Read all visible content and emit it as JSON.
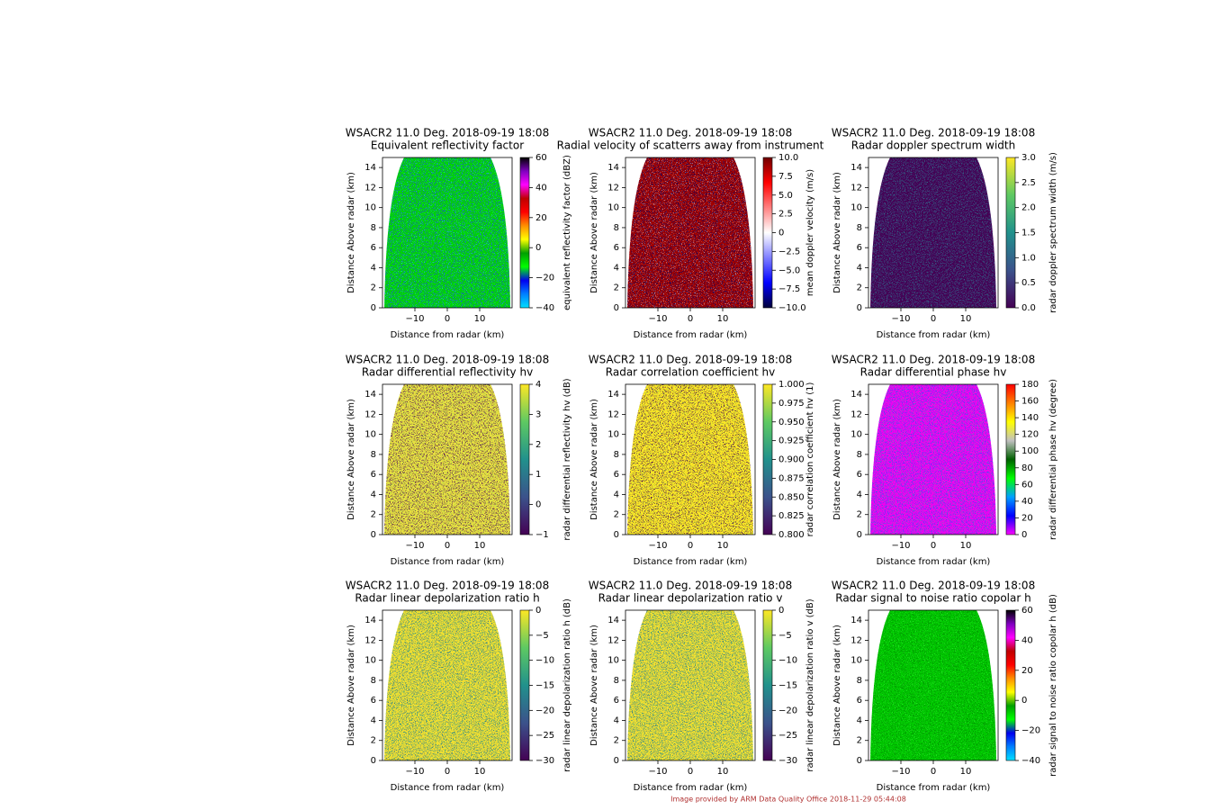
{
  "footer": "Image provided by ARM Data Quality Office 2018-11-29 05:44:08",
  "chart_data": [
    {
      "type": "image",
      "title": "WSACR2 11.0 Deg. 2018-09-19 18:08",
      "subtitle": "Equivalent reflectivity factor",
      "xlabel": "Distance from radar (km)",
      "ylabel": "Distance Above radar (km)",
      "xlim": [
        -20,
        20
      ],
      "xticks": [
        {
          "value": -10,
          "label": "−10"
        },
        0,
        10
      ],
      "ylim": [
        0,
        15
      ],
      "yticks": [
        0,
        2,
        4,
        6,
        8,
        10,
        12,
        14
      ],
      "colorbar": {
        "label": "equivalent reflectivity factor (dBZ)",
        "lim": [
          -40,
          60
        ],
        "ticks": [
          {
            "value": -40,
            "label": "−40"
          },
          {
            "value": -20,
            "label": "−20"
          },
          0,
          20,
          40,
          60
        ],
        "cmap": [
          "#00e0ff",
          "#0080ff",
          "#0000f0",
          "#00ff00",
          "#00a000",
          "#ffff00",
          "#ff9000",
          "#ff0000",
          "#c00000",
          "#ff00ff",
          "#8000c0",
          "#000000"
        ]
      },
      "field_colors": [
        "#00d400",
        "#1a4fe0",
        "#20e0f0"
      ]
    },
    {
      "type": "image",
      "title": "WSACR2 11.0 Deg. 2018-09-19 18:08",
      "subtitle": "Radial velocity of scatterrs away from instrument",
      "xlabel": "Distance from radar (km)",
      "ylabel": "Distance Above radar (km)",
      "xlim": [
        -20,
        20
      ],
      "xticks": [
        {
          "value": -10,
          "label": "−10"
        },
        0,
        10
      ],
      "ylim": [
        0,
        15
      ],
      "yticks": [
        0,
        2,
        4,
        6,
        8,
        10,
        12,
        14
      ],
      "colorbar": {
        "label": "mean doppler velocity (m/s)",
        "lim": [
          -10,
          10
        ],
        "ticks": [
          {
            "value": -10,
            "label": "−10.0"
          },
          {
            "value": -7.5,
            "label": "−7.5"
          },
          {
            "value": -5,
            "label": "−5.0"
          },
          {
            "value": -2.5,
            "label": "−2.5"
          },
          0,
          2.5,
          {
            "value": 5,
            "label": "5.0"
          },
          7.5,
          {
            "value": 10,
            "label": "10.0"
          }
        ],
        "cmap": [
          "#00003a",
          "#0000ff",
          "#8080ff",
          "#ffffff",
          "#ff8080",
          "#ff0000",
          "#700000"
        ]
      },
      "field_colors": [
        "#a00000",
        "#00006a",
        "#f0f0ff"
      ]
    },
    {
      "type": "image",
      "title": "WSACR2 11.0 Deg. 2018-09-19 18:08",
      "subtitle": "Radar doppler spectrum width",
      "xlabel": "Distance from radar (km)",
      "ylabel": "Distance Above radar (km)",
      "xlim": [
        -20,
        20
      ],
      "xticks": [
        {
          "value": -10,
          "label": "−10"
        },
        0,
        10
      ],
      "ylim": [
        0,
        15
      ],
      "yticks": [
        0,
        2,
        4,
        6,
        8,
        10,
        12,
        14
      ],
      "colorbar": {
        "label": "radar doppler spectrum width (m/s)",
        "lim": [
          0,
          3
        ],
        "ticks": [
          {
            "value": 0,
            "label": "0.0"
          },
          0.5,
          {
            "value": 1,
            "label": "1.0"
          },
          1.5,
          {
            "value": 2,
            "label": "2.0"
          },
          2.5,
          {
            "value": 3,
            "label": "3.0"
          }
        ],
        "cmap": [
          "#440154",
          "#3b528b",
          "#21918c",
          "#5ec962",
          "#fde725"
        ]
      },
      "field_colors": [
        "#440154",
        "#3b528b",
        "#21918c"
      ]
    },
    {
      "type": "image",
      "title": "WSACR2 11.0 Deg. 2018-09-19 18:08",
      "subtitle": "Radar differential reflectivity hv",
      "xlabel": "Distance from radar (km)",
      "ylabel": "Distance Above radar (km)",
      "xlim": [
        -20,
        20
      ],
      "xticks": [
        {
          "value": -10,
          "label": "−10"
        },
        0,
        10
      ],
      "ylim": [
        0,
        15
      ],
      "yticks": [
        0,
        2,
        4,
        6,
        8,
        10,
        12,
        14
      ],
      "colorbar": {
        "label": "radar differential reflectivity hv (dB)",
        "lim": [
          -1,
          4
        ],
        "ticks": [
          {
            "value": -1,
            "label": "−1"
          },
          0,
          1,
          2,
          3,
          4
        ],
        "cmap": [
          "#440154",
          "#3b528b",
          "#21918c",
          "#5ec962",
          "#fde725"
        ]
      },
      "field_colors": [
        "#e8e040",
        "#440154",
        "#7ad151"
      ]
    },
    {
      "type": "image",
      "title": "WSACR2 11.0 Deg. 2018-09-19 18:08",
      "subtitle": "Radar correlation coefficient hv",
      "xlabel": "Distance from radar (km)",
      "ylabel": "Distance Above radar (km)",
      "xlim": [
        -20,
        20
      ],
      "xticks": [
        {
          "value": -10,
          "label": "−10"
        },
        0,
        10
      ],
      "ylim": [
        0,
        15
      ],
      "yticks": [
        0,
        2,
        4,
        6,
        8,
        10,
        12,
        14
      ],
      "colorbar": {
        "label": "radar correlation coefficient hv (1)",
        "lim": [
          0.8,
          1
        ],
        "ticks": [
          {
            "value": 0.8,
            "label": "0.800"
          },
          0.825,
          {
            "value": 0.85,
            "label": "0.850"
          },
          0.875,
          {
            "value": 0.9,
            "label": "0.900"
          },
          0.925,
          {
            "value": 0.95,
            "label": "0.950"
          },
          0.975,
          {
            "value": 1,
            "label": "1.000"
          }
        ],
        "cmap": [
          "#440154",
          "#3b528b",
          "#21918c",
          "#5ec962",
          "#fde725"
        ]
      },
      "field_colors": [
        "#fde725",
        "#3b0050",
        "#7ad151"
      ]
    },
    {
      "type": "image",
      "title": "WSACR2 11.0 Deg. 2018-09-19 18:08",
      "subtitle": "Radar differential phase hv",
      "xlabel": "Distance from radar (km)",
      "ylabel": "Distance Above radar (km)",
      "xlim": [
        -20,
        20
      ],
      "xticks": [
        {
          "value": -10,
          "label": "−10"
        },
        0,
        10
      ],
      "ylim": [
        0,
        15
      ],
      "yticks": [
        0,
        2,
        4,
        6,
        8,
        10,
        12,
        14
      ],
      "colorbar": {
        "label": "radar differential phase hv (degree)",
        "lim": [
          0,
          180
        ],
        "ticks": [
          0,
          20,
          40,
          60,
          80,
          100,
          120,
          140,
          160,
          180
        ],
        "cmap": [
          "#ff00ff",
          "#0000ff",
          "#00a0ff",
          "#00ff00",
          "#006000",
          "#c0c0c0",
          "#ffff00",
          "#ff8000",
          "#ff0000"
        ]
      },
      "field_colors": [
        "#f000f0",
        "#4040ff",
        "#20c0a0"
      ]
    },
    {
      "type": "image",
      "title": "WSACR2 11.0 Deg. 2018-09-19 18:08",
      "subtitle": "Radar linear depolarization ratio h",
      "xlabel": "Distance from radar (km)",
      "ylabel": "Distance Above radar (km)",
      "xlim": [
        -20,
        20
      ],
      "xticks": [
        {
          "value": -10,
          "label": "−10"
        },
        0,
        10
      ],
      "ylim": [
        0,
        15
      ],
      "yticks": [
        0,
        2,
        4,
        6,
        8,
        10,
        12,
        14
      ],
      "colorbar": {
        "label": "radar linear depolarization ratio h (dB)",
        "lim": [
          -30,
          0
        ],
        "ticks": [
          {
            "value": -30,
            "label": "−30"
          },
          {
            "value": -25,
            "label": "−25"
          },
          {
            "value": -20,
            "label": "−20"
          },
          {
            "value": -15,
            "label": "−15"
          },
          {
            "value": -10,
            "label": "−10"
          },
          {
            "value": -5,
            "label": "−5"
          },
          0
        ],
        "cmap": [
          "#440154",
          "#3b528b",
          "#21918c",
          "#5ec962",
          "#fde725"
        ]
      },
      "field_colors": [
        "#f0e030",
        "#21918c",
        "#3b528b"
      ]
    },
    {
      "type": "image",
      "title": "WSACR2 11.0 Deg. 2018-09-19 18:08",
      "subtitle": "Radar linear depolarization ratio v",
      "xlabel": "Distance from radar (km)",
      "ylabel": "Distance Above radar (km)",
      "xlim": [
        -20,
        20
      ],
      "xticks": [
        {
          "value": -10,
          "label": "−10"
        },
        0,
        10
      ],
      "ylim": [
        0,
        15
      ],
      "yticks": [
        0,
        2,
        4,
        6,
        8,
        10,
        12,
        14
      ],
      "colorbar": {
        "label": "radar linear depolarization ratio v (dB)",
        "lim": [
          -30,
          0
        ],
        "ticks": [
          {
            "value": -30,
            "label": "−30"
          },
          {
            "value": -25,
            "label": "−25"
          },
          {
            "value": -20,
            "label": "−20"
          },
          {
            "value": -15,
            "label": "−15"
          },
          {
            "value": -10,
            "label": "−10"
          },
          {
            "value": -5,
            "label": "−5"
          },
          0
        ],
        "cmap": [
          "#440154",
          "#3b528b",
          "#21918c",
          "#5ec962",
          "#fde725"
        ]
      },
      "field_colors": [
        "#f0e030",
        "#21918c",
        "#3b528b"
      ]
    },
    {
      "type": "image",
      "title": "WSACR2 11.0 Deg. 2018-09-19 18:08",
      "subtitle": "Radar signal to noise ratio copolar h",
      "xlabel": "Distance from radar (km)",
      "ylabel": "Distance Above radar (km)",
      "xlim": [
        -20,
        20
      ],
      "xticks": [
        {
          "value": -10,
          "label": "−10"
        },
        0,
        10
      ],
      "ylim": [
        0,
        15
      ],
      "yticks": [
        0,
        2,
        4,
        6,
        8,
        10,
        12,
        14
      ],
      "colorbar": {
        "label": "radar signal to noise ratio copolar h (dB)",
        "lim": [
          -40,
          60
        ],
        "ticks": [
          {
            "value": -40,
            "label": "−40"
          },
          {
            "value": -20,
            "label": "−20"
          },
          0,
          20,
          40,
          60
        ],
        "cmap": [
          "#00e0ff",
          "#0080ff",
          "#0000f0",
          "#00ff00",
          "#00a000",
          "#ffff00",
          "#ff9000",
          "#ff0000",
          "#c00000",
          "#ff00ff",
          "#8000c0",
          "#000000"
        ]
      },
      "field_colors": [
        "#00c800",
        "#008800",
        "#40ff40"
      ]
    }
  ]
}
